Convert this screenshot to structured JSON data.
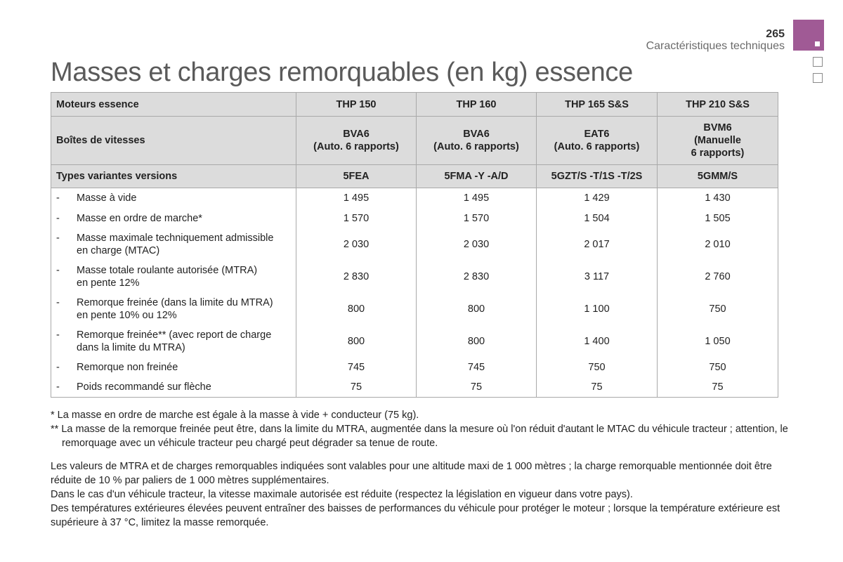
{
  "header": {
    "page_number": "265",
    "section": "Caractéristiques techniques"
  },
  "title": "Masses et charges remorquables (en kg) essence",
  "table": {
    "engine_label": "Moteurs essence",
    "engines": [
      "THP 150",
      "THP 160",
      "THP 165 S&S",
      "THP 210 S&S"
    ],
    "gearbox_label": "Boîtes de vitesses",
    "gearboxes": [
      "BVA6\n(Auto. 6 rapports)",
      "BVA6\n(Auto. 6 rapports)",
      "EAT6\n(Auto. 6 rapports)",
      "BVM6\n(Manuelle\n6 rapports)"
    ],
    "variants_label": "Types variantes versions",
    "variants": [
      "5FEA",
      "5FMA -Y -A/D",
      "5GZT/S -T/1S -T/2S",
      "5GMM/S"
    ],
    "rows": [
      {
        "dash": "-",
        "label": "Masse à vide",
        "values": [
          "1 495",
          "1 495",
          "1 429",
          "1 430"
        ]
      },
      {
        "dash": "-",
        "label": "Masse en ordre de marche*",
        "values": [
          "1 570",
          "1 570",
          "1 504",
          "1 505"
        ]
      },
      {
        "dash": "-",
        "label": "Masse maximale techniquement admissible\nen charge (MTAC)",
        "values": [
          "2 030",
          "2 030",
          "2 017",
          "2 010"
        ]
      },
      {
        "dash": "-",
        "label": "Masse totale roulante autorisée (MTRA)\nen pente 12%",
        "values": [
          "2 830",
          "2 830",
          "3 117",
          "2 760"
        ]
      },
      {
        "dash": "-",
        "label": "Remorque freinée (dans la limite du MTRA)\nen pente 10% ou 12%",
        "values": [
          "800",
          "800",
          "1 100",
          "750"
        ]
      },
      {
        "dash": "-",
        "label": "Remorque freinée** (avec report de charge\ndans la limite du MTRA)",
        "values": [
          "800",
          "800",
          "1 400",
          "1 050"
        ]
      },
      {
        "dash": "-",
        "label": "Remorque non freinée",
        "values": [
          "745",
          "745",
          "750",
          "750"
        ]
      },
      {
        "dash": "-",
        "label": "Poids recommandé sur flèche",
        "values": [
          "75",
          "75",
          "75",
          "75"
        ]
      }
    ]
  },
  "footnotes": [
    "* La masse en ordre de marche est égale à la masse à vide + conducteur (75 kg).",
    "** La masse de la remorque freinée peut être, dans la limite du MTRA, augmentée dans la mesure où l'on réduit d'autant le MTAC du véhicule tracteur ; attention, le remorquage avec un véhicule tracteur peu chargé peut dégrader sa tenue de route."
  ],
  "paragraphs": [
    "Les valeurs de MTRA et de charges remorquables indiquées sont valables pour une altitude maxi de 1 000 mètres ; la charge remorquable mentionnée doit être réduite de 10 % par paliers de 1 000 mètres supplémentaires.",
    "Dans le cas d'un véhicule tracteur, la vitesse maximale autorisée est réduite (respectez la législation en vigueur dans votre pays).",
    "Des températures extérieures élevées peuvent entraîner des baisses de performances du véhicule pour protéger le moteur ; lorsque la température extérieure est supérieure à 37 °C, limitez la masse remorquée."
  ],
  "colors": {
    "accent": "#a05a95",
    "header_fill": "#dcdcdc",
    "title": "#5a5a5a"
  },
  "icons": {
    "active_tab": "purple-square-tab-icon",
    "inactive_tab": "empty-square-tab-icon"
  }
}
